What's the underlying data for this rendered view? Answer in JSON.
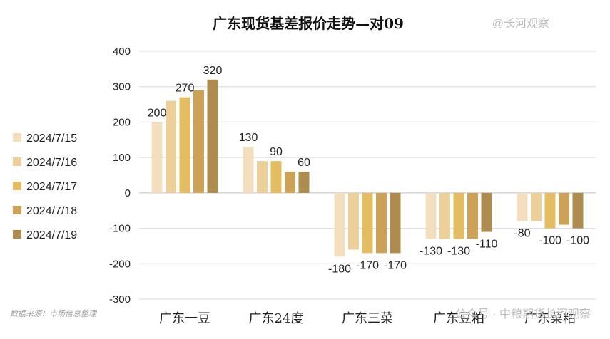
{
  "watermark_top": "@长河观察",
  "watermark_bottom": "公众号 · 中粮期货长河观察",
  "source_note": "数据来源：市场信息整理",
  "colors": [
    "#f3dfbd",
    "#eccf99",
    "#e4bd63",
    "#cca356",
    "#ad8c4e"
  ],
  "chart_data": {
    "type": "bar",
    "title": "广东现货基差报价走势—对09",
    "xlabel": "",
    "ylabel": "",
    "ylim": [
      -300,
      400
    ],
    "yticks": [
      400,
      300,
      200,
      100,
      0,
      -100,
      -200,
      -300
    ],
    "grid": true,
    "legend_position": "left",
    "categories": [
      "广东一豆",
      "广东24度",
      "广东三菜",
      "广东豆粕",
      "广东菜粕"
    ],
    "series": [
      {
        "name": "2024/7/15",
        "values": [
          200,
          130,
          -180,
          -130,
          -80
        ]
      },
      {
        "name": "2024/7/16",
        "values": [
          260,
          90,
          -160,
          -130,
          -80
        ]
      },
      {
        "name": "2024/7/17",
        "values": [
          270,
          90,
          -170,
          -130,
          -100
        ]
      },
      {
        "name": "2024/7/18",
        "values": [
          290,
          60,
          -170,
          -130,
          -90
        ]
      },
      {
        "name": "2024/7/19",
        "values": [
          320,
          60,
          -170,
          -110,
          -100
        ]
      }
    ],
    "data_labels": [
      {
        "series": 0,
        "category": 0,
        "text": "200"
      },
      {
        "series": 2,
        "category": 0,
        "text": "270"
      },
      {
        "series": 4,
        "category": 0,
        "text": "320"
      },
      {
        "series": 0,
        "category": 1,
        "text": "130"
      },
      {
        "series": 2,
        "category": 1,
        "text": "90"
      },
      {
        "series": 4,
        "category": 1,
        "text": "60"
      },
      {
        "series": 0,
        "category": 2,
        "text": "-180"
      },
      {
        "series": 2,
        "category": 2,
        "text": "-170"
      },
      {
        "series": 4,
        "category": 2,
        "text": "-170"
      },
      {
        "series": 0,
        "category": 3,
        "text": "-130"
      },
      {
        "series": 2,
        "category": 3,
        "text": "-130"
      },
      {
        "series": 4,
        "category": 3,
        "text": "-110"
      },
      {
        "series": 0,
        "category": 4,
        "text": "-80"
      },
      {
        "series": 2,
        "category": 4,
        "text": "-100"
      },
      {
        "series": 4,
        "category": 4,
        "text": "-100"
      }
    ]
  }
}
